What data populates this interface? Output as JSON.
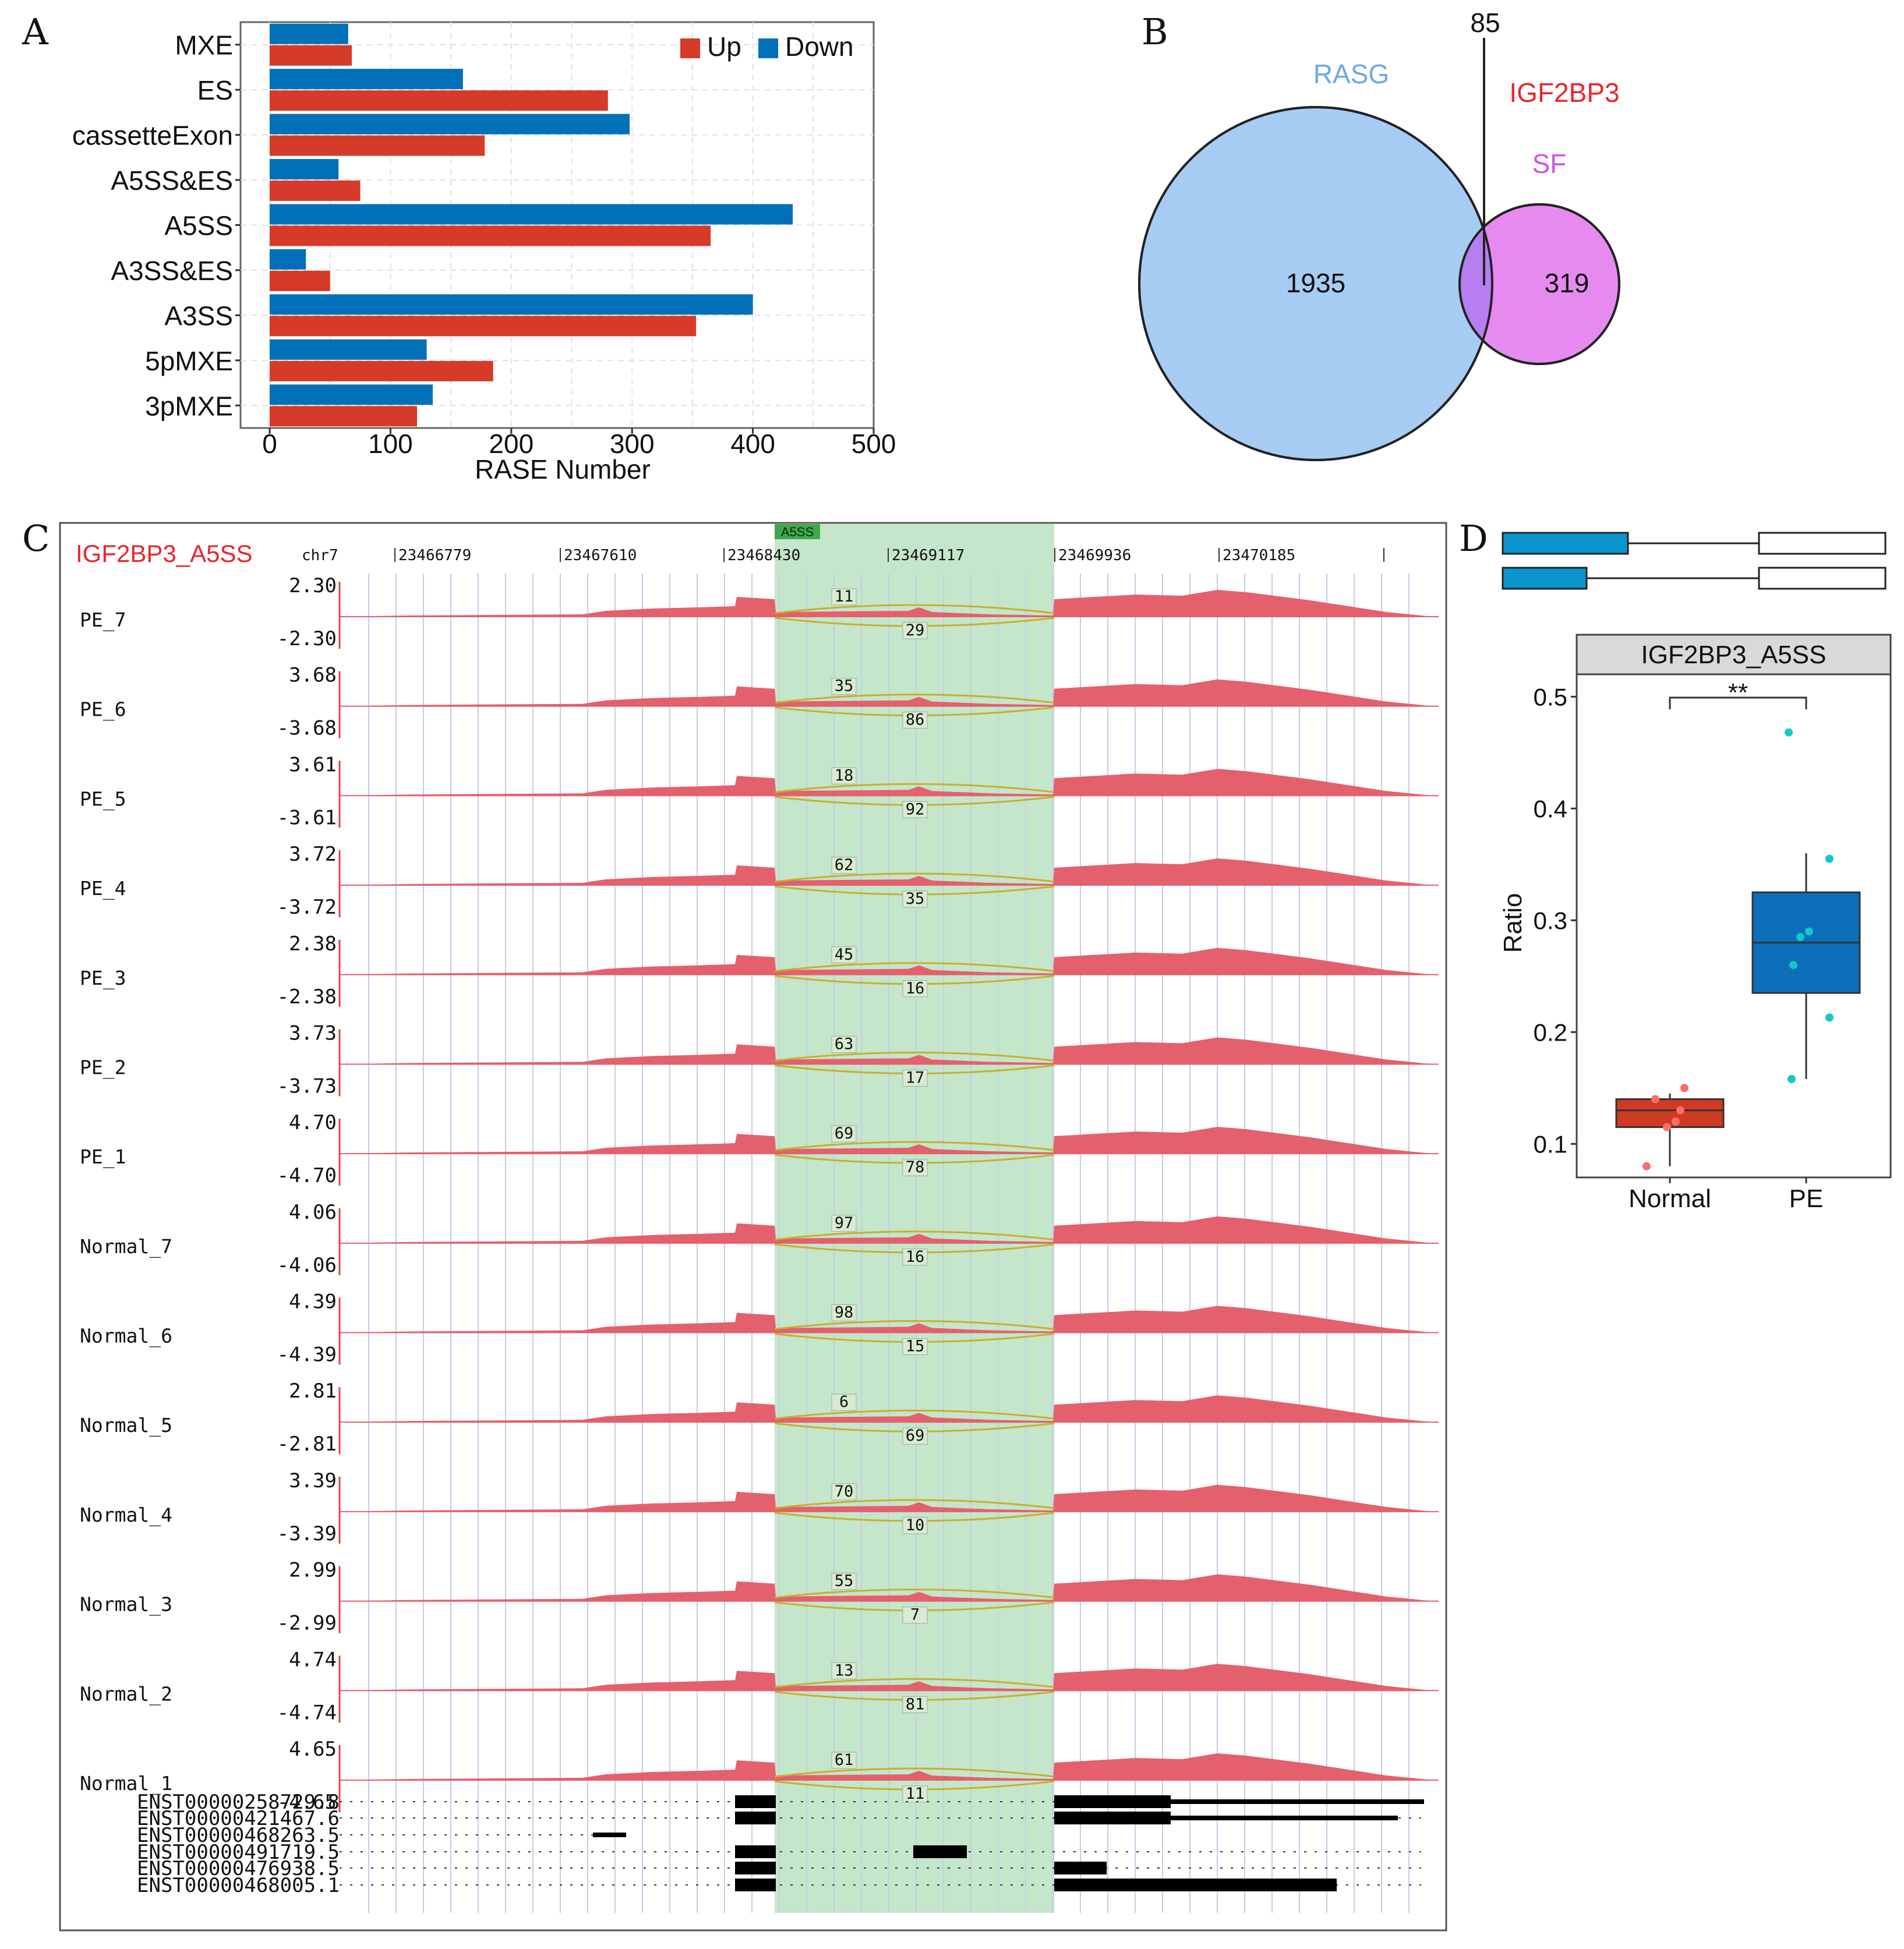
{
  "panel_labels": {
    "a": "A",
    "b": "B",
    "c": "C",
    "d": "D"
  },
  "colors": {
    "up": "#D63A28",
    "down": "#0071B8",
    "rasg_fill": "#A6CCF4",
    "sf_fill": "#E68AF0",
    "overlap_fill": "#B67EF0",
    "rasg_text": "#6FA8E8",
    "igf_text": "#E8262D",
    "sf_text": "#CF55E8",
    "coverage": "#E4606D",
    "highlight": "#A4D9AE",
    "junction": "#C6B02A",
    "normal_box": "#D03A22",
    "pe_box": "#0B6FB9",
    "normal_pt": "#FF6B6B",
    "pe_pt": "#12C8C8"
  },
  "chart_data": [
    {
      "id": "A",
      "type": "bar",
      "orientation": "horizontal",
      "categories": [
        "MXE",
        "ES",
        "cassetteExon",
        "A5SS&ES",
        "A5SS",
        "A3SS&ES",
        "A3SS",
        "5pMXE",
        "3pMXE"
      ],
      "series": [
        {
          "name": "Up",
          "values": [
            68,
            280,
            178,
            75,
            365,
            50,
            353,
            185,
            122
          ]
        },
        {
          "name": "Down",
          "values": [
            65,
            160,
            298,
            57,
            433,
            30,
            400,
            130,
            135
          ]
        }
      ],
      "xlabel": "RASE Number",
      "xlim": [
        0,
        500
      ],
      "xticks": [
        "0",
        "100",
        "200",
        "300",
        "400",
        "500"
      ],
      "legend": [
        "Up",
        "Down"
      ],
      "legend_position": "top-right",
      "grid": true
    },
    {
      "id": "B",
      "type": "venn",
      "sets": [
        "RASG",
        "IGF2BP3",
        "SF"
      ],
      "only_rasg": "1935",
      "only_sf": "319",
      "overlap": "85"
    },
    {
      "id": "C",
      "type": "coverage_track",
      "title": "IGF2BP3_A5SS",
      "highlight_label": "A5SS",
      "chrom": "chr7",
      "positions": [
        "23466779",
        "23467610",
        "23468430",
        "23469117",
        "23469936",
        "23470185"
      ],
      "samples": [
        {
          "name": "PE_7",
          "max": "2.30",
          "min": "-2.30",
          "upper": "11",
          "lower": "29"
        },
        {
          "name": "PE_6",
          "max": "3.68",
          "min": "-3.68",
          "upper": "35",
          "lower": "86"
        },
        {
          "name": "PE_5",
          "max": "3.61",
          "min": "-3.61",
          "upper": "18",
          "lower": "92"
        },
        {
          "name": "PE_4",
          "max": "3.72",
          "min": "-3.72",
          "upper": "62",
          "lower": "35"
        },
        {
          "name": "PE_3",
          "max": "2.38",
          "min": "-2.38",
          "upper": "45",
          "lower": "16"
        },
        {
          "name": "PE_2",
          "max": "3.73",
          "min": "-3.73",
          "upper": "63",
          "lower": "17"
        },
        {
          "name": "PE_1",
          "max": "4.70",
          "min": "-4.70",
          "upper": "69",
          "lower": "78"
        },
        {
          "name": "Normal_7",
          "max": "4.06",
          "min": "-4.06",
          "upper": "97",
          "lower": "16"
        },
        {
          "name": "Normal_6",
          "max": "4.39",
          "min": "-4.39",
          "upper": "98",
          "lower": "15"
        },
        {
          "name": "Normal_5",
          "max": "2.81",
          "min": "-2.81",
          "upper": "6",
          "lower": "69"
        },
        {
          "name": "Normal_4",
          "max": "3.39",
          "min": "-3.39",
          "upper": "70",
          "lower": "10"
        },
        {
          "name": "Normal_3",
          "max": "2.99",
          "min": "-2.99",
          "upper": "55",
          "lower": "7"
        },
        {
          "name": "Normal_2",
          "max": "4.74",
          "min": "-4.74",
          "upper": "13",
          "lower": "81"
        },
        {
          "name": "Normal_1",
          "max": "4.65",
          "min": "-4.65",
          "upper": "61",
          "lower": "11"
        }
      ],
      "transcripts": [
        "ENST00000258729.8",
        "ENST00000421467.6",
        "ENST00000468263.5",
        "ENST00000491719.5",
        "ENST00000476938.5",
        "ENST00000468005.1"
      ]
    },
    {
      "id": "D",
      "type": "box",
      "title": "IGF2BP3_A5SS",
      "categories": [
        "Normal",
        "PE"
      ],
      "ylabel": "Ratio",
      "ylim": [
        0.07,
        0.52
      ],
      "yticks": [
        "0.1",
        "0.2",
        "0.3",
        "0.4",
        "0.5"
      ],
      "significance": "**",
      "boxes": [
        {
          "name": "Normal",
          "min": 0.08,
          "q1": 0.115,
          "median": 0.13,
          "q3": 0.14,
          "max": 0.145,
          "points": [
            0.08,
            0.115,
            0.12,
            0.13,
            0.14,
            0.15
          ]
        },
        {
          "name": "PE",
          "min": 0.158,
          "q1": 0.235,
          "median": 0.28,
          "q3": 0.325,
          "max": 0.36,
          "points": [
            0.158,
            0.213,
            0.26,
            0.285,
            0.29,
            0.355,
            0.468
          ]
        }
      ]
    }
  ]
}
